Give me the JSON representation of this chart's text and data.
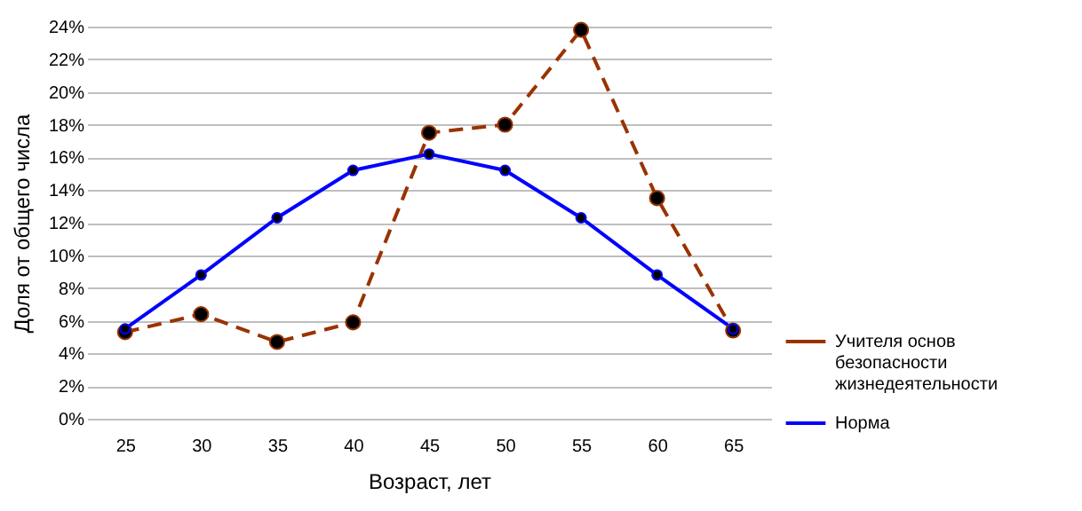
{
  "chart_data": {
    "type": "line",
    "xlabel": "Возраст, лет",
    "ylabel": "Доля от общего числа",
    "categories": [
      "25",
      "30",
      "35",
      "40",
      "45",
      "50",
      "55",
      "60",
      "65"
    ],
    "series": [
      {
        "name": "Учителя основ безопасности жизнедеятельности",
        "color": "#993300",
        "line_style": "dashed",
        "values": [
          5.3,
          6.4,
          4.7,
          5.9,
          17.5,
          18.0,
          23.8,
          13.5,
          5.4
        ]
      },
      {
        "name": "Норма",
        "color": "#0000ff",
        "line_style": "solid",
        "values": [
          5.5,
          8.8,
          12.3,
          15.2,
          16.2,
          15.2,
          12.3,
          8.8,
          5.5
        ]
      }
    ],
    "ylim": [
      0,
      24
    ],
    "yticks": [
      {
        "value": 0,
        "label": "0%"
      },
      {
        "value": 2,
        "label": "2%"
      },
      {
        "value": 4,
        "label": "4%"
      },
      {
        "value": 6,
        "label": "6%"
      },
      {
        "value": 8,
        "label": "8%"
      },
      {
        "value": 10,
        "label": "10%"
      },
      {
        "value": 12,
        "label": "12%"
      },
      {
        "value": 14,
        "label": "14%"
      },
      {
        "value": 16,
        "label": "16%"
      },
      {
        "value": 18,
        "label": "18%"
      },
      {
        "value": 20,
        "label": "20%"
      },
      {
        "value": 22,
        "label": "22%"
      },
      {
        "value": 24,
        "label": "24%"
      }
    ],
    "grid": "y",
    "legend": "right",
    "marker": "circle"
  }
}
